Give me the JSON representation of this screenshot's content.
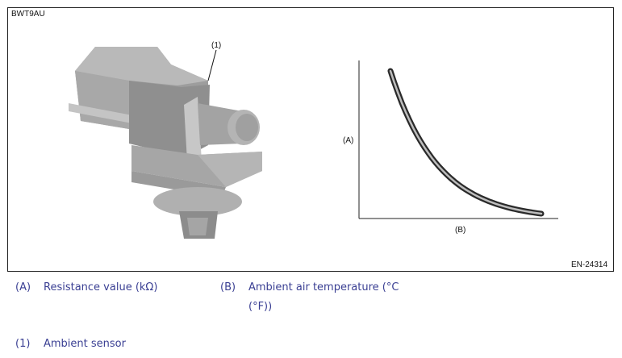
{
  "figure": {
    "id_code": "BWT9AU",
    "ref_code": "EN-24314",
    "callout_sensor": "(1)",
    "axis_y_label": "(A)",
    "axis_x_label": "(B)"
  },
  "chart_data": {
    "type": "line",
    "title": "",
    "xlabel": "(B)",
    "ylabel": "(A)",
    "description_free": true,
    "series": [
      {
        "values_shape": "decreasing-exponential"
      }
    ],
    "grid": false
  },
  "legend": [
    {
      "key": "(A)",
      "text": "Resistance value (kΩ)"
    },
    {
      "key": "(B)",
      "text": "Ambient air temperature (°C",
      "text2": "(°F))"
    },
    {
      "key": "(1)",
      "text": "Ambient sensor"
    }
  ],
  "colors": {
    "legend_text": "#3a3f93",
    "part_gray": "#a9a9a9"
  }
}
